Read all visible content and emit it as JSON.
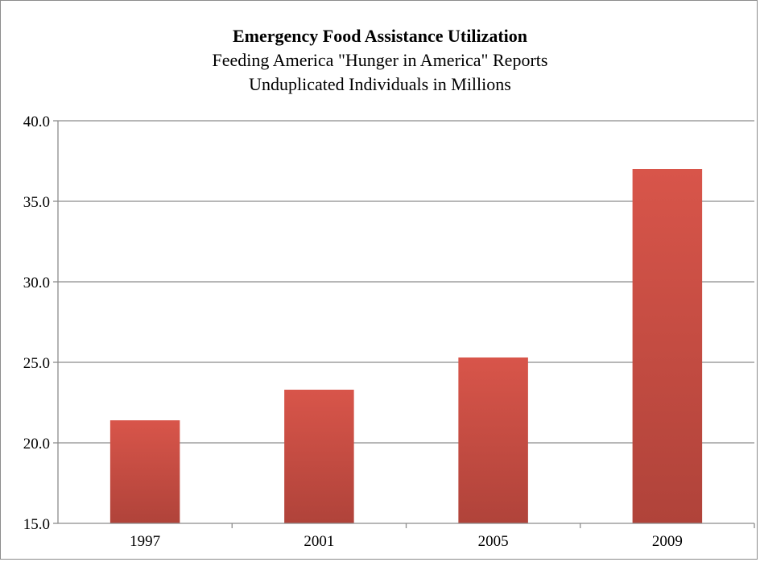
{
  "chart_data": {
    "type": "bar",
    "title": "Emergency Food Assistance Utilization",
    "subtitle_lines": [
      "Feeding America \"Hunger in America\" Reports",
      "Unduplicated Individuals in Millions"
    ],
    "categories": [
      "1997",
      "2001",
      "2005",
      "2009"
    ],
    "values": [
      21.4,
      23.3,
      25.3,
      37.0
    ],
    "ylim": [
      15.0,
      40.0
    ],
    "yticks": [
      "15.0",
      "20.0",
      "25.0",
      "30.0",
      "35.0",
      "40.0"
    ],
    "xlabel": "",
    "ylabel": "",
    "grid": true,
    "legend": "none",
    "colors": {
      "bar_top": "#d8554a",
      "bar_bottom": "#b0433a",
      "grid": "#8c8c8c",
      "axis": "#8c8c8c"
    }
  }
}
